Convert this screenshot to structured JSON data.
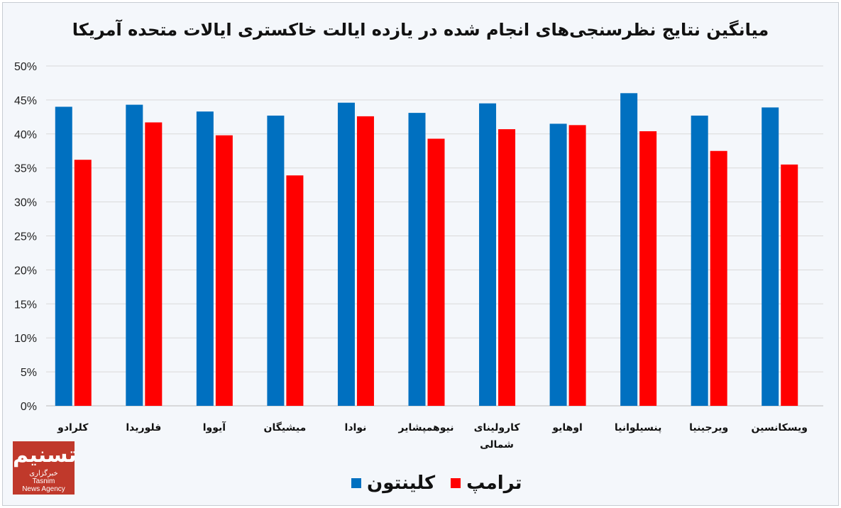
{
  "chart_data": {
    "type": "bar",
    "title": "میانگین نتایج نظرسنجی‌های انجام شده در یازده ایالت خاکستری ایالات متحده آمریکا",
    "categories": [
      "کلرادو",
      "فلوریدا",
      "آیووا",
      "میشیگان",
      "نوادا",
      "نیوهمپشایر",
      "کارولینای شمالی",
      "اوهایو",
      "پنسیلوانیا",
      "ویرجینیا",
      "ویسکانسین"
    ],
    "series": [
      {
        "name": "کلینتون",
        "color": "#0070c0",
        "values": [
          44.0,
          44.3,
          43.3,
          42.7,
          44.6,
          43.1,
          44.5,
          41.5,
          46.0,
          42.7,
          43.9
        ]
      },
      {
        "name": "ترامپ",
        "color": "#ff0000",
        "values": [
          36.2,
          41.7,
          39.8,
          33.9,
          42.6,
          39.3,
          40.7,
          41.3,
          40.4,
          37.5,
          35.5
        ]
      }
    ],
    "yticks": [
      "0%",
      "5%",
      "10%",
      "15%",
      "20%",
      "25%",
      "30%",
      "35%",
      "40%",
      "45%",
      "50%"
    ],
    "ylim": [
      0,
      50
    ],
    "grid": true,
    "legend": "bottom-center",
    "xlabel": "",
    "ylabel": ""
  },
  "logo": {
    "text": "تسنیم",
    "sub1": "خبرگزاری",
    "sub2": "Tasnim",
    "sub3": "News Agency"
  }
}
